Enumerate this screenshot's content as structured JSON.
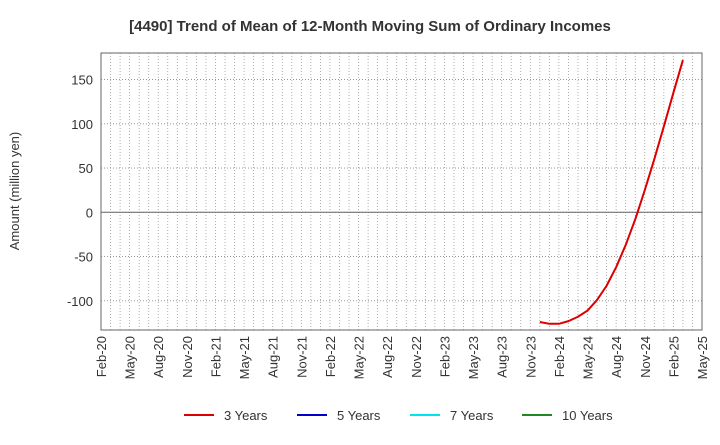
{
  "chart_data": {
    "type": "line",
    "title": "[4490]  Trend of Mean of 12-Month Moving Sum of Ordinary Incomes",
    "ylabel": "Amount (million yen)",
    "xlabel": "",
    "ylim": [
      -133,
      180
    ],
    "y_ticks": [
      150,
      100,
      50,
      0,
      -50,
      -100
    ],
    "x_tick_labels": [
      "Feb-20",
      "May-20",
      "Aug-20",
      "Nov-20",
      "Feb-21",
      "May-21",
      "Aug-21",
      "Nov-21",
      "Feb-22",
      "May-22",
      "Aug-22",
      "Nov-22",
      "Feb-23",
      "May-23",
      "Aug-23",
      "Nov-23",
      "Feb-24",
      "May-24",
      "Aug-24",
      "Nov-24",
      "Feb-25",
      "May-25"
    ],
    "x_range": [
      "2020-02",
      "2025-05"
    ],
    "grid": true,
    "legend_position": "bottom",
    "series": [
      {
        "name": "3 Years",
        "color": "#dd0000",
        "points": [
          [
            "2023-12",
            -124
          ],
          [
            "2024-01",
            -126
          ],
          [
            "2024-02",
            -126
          ],
          [
            "2024-03",
            -123
          ],
          [
            "2024-04",
            -118
          ],
          [
            "2024-05",
            -111
          ],
          [
            "2024-06",
            -99
          ],
          [
            "2024-07",
            -83
          ],
          [
            "2024-08",
            -62
          ],
          [
            "2024-09",
            -37
          ],
          [
            "2024-10",
            -8
          ],
          [
            "2024-11",
            25
          ],
          [
            "2024-12",
            60
          ],
          [
            "2025-01",
            97
          ],
          [
            "2025-02",
            135
          ],
          [
            "2025-03",
            172
          ]
        ]
      },
      {
        "name": "5 Years",
        "color": "#0000cc",
        "points": []
      },
      {
        "name": "7 Years",
        "color": "#00e5ee",
        "points": []
      },
      {
        "name": "10 Years",
        "color": "#228822",
        "points": []
      }
    ]
  }
}
